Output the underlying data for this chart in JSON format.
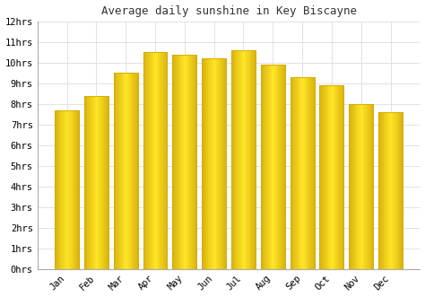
{
  "title": "Average daily sunshine in Key Biscayne",
  "months": [
    "Jan",
    "Feb",
    "Mar",
    "Apr",
    "May",
    "Jun",
    "Jul",
    "Aug",
    "Sep",
    "Oct",
    "Nov",
    "Dec"
  ],
  "values": [
    7.7,
    8.4,
    9.5,
    10.5,
    10.4,
    10.2,
    10.6,
    9.9,
    9.3,
    8.9,
    8.0,
    7.6
  ],
  "bar_color_center": "#FFE033",
  "bar_color_edge": "#D4A800",
  "background_color": "#FFFFFF",
  "grid_color": "#DDDDDD",
  "ylim": [
    0,
    12
  ],
  "ytick_values": [
    0,
    1,
    2,
    3,
    4,
    5,
    6,
    7,
    8,
    9,
    10,
    11,
    12
  ],
  "title_fontsize": 9,
  "tick_fontsize": 7.5,
  "title_color": "#333333",
  "bar_width": 0.82
}
